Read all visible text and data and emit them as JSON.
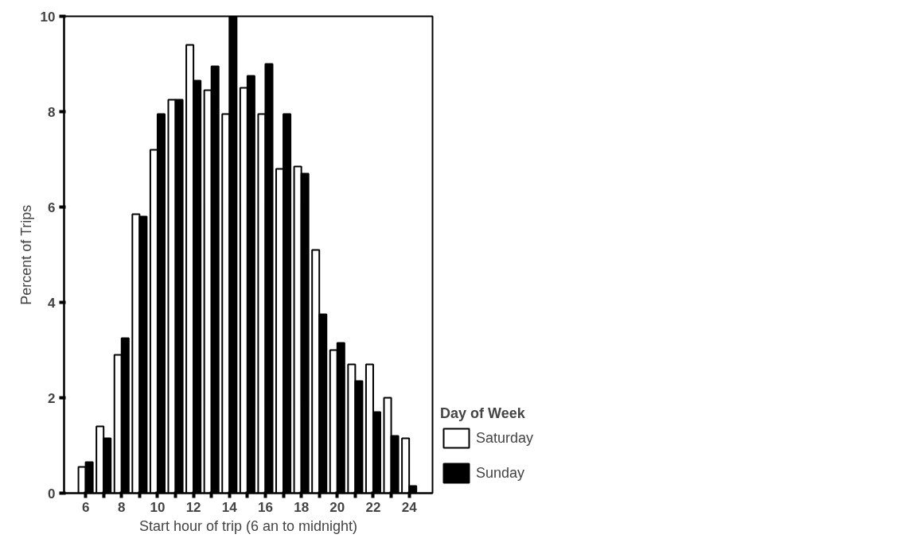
{
  "chart_data": {
    "type": "bar",
    "xlabel": "Start hour of trip (6 an to midnight)",
    "ylabel": "Percent of Trips",
    "legend_title": "Day of Week",
    "legend": "right",
    "grid": false,
    "x": [
      6,
      7,
      8,
      9,
      10,
      11,
      12,
      13,
      14,
      15,
      16,
      17,
      18,
      19,
      20,
      21,
      22,
      23,
      24
    ],
    "series": [
      {
        "name": "Saturday",
        "color": "#ffffff",
        "values": [
          0.55,
          1.4,
          2.9,
          5.85,
          7.2,
          8.25,
          9.4,
          8.45,
          7.95,
          8.5,
          7.95,
          6.8,
          6.85,
          5.1,
          3.0,
          2.7,
          2.7,
          2.0,
          1.15
        ]
      },
      {
        "name": "Sunday",
        "color": "#000000",
        "values": [
          0.65,
          1.15,
          3.25,
          5.8,
          7.95,
          8.25,
          8.65,
          8.95,
          10,
          8.75,
          9.0,
          7.95,
          6.7,
          3.75,
          3.15,
          2.35,
          1.7,
          1.2,
          0.15
        ]
      }
    ],
    "xlim": [
      4.8,
      25.3
    ],
    "xticks": [
      6,
      {
        "value": 7,
        "label": null
      },
      8,
      {
        "value": 9,
        "label": null
      },
      10,
      {
        "value": 11,
        "label": null
      },
      12,
      {
        "value": 13,
        "label": null
      },
      14,
      {
        "value": 15,
        "label": null
      },
      16,
      {
        "value": 17,
        "label": null
      },
      18,
      {
        "value": 19,
        "label": null
      },
      20,
      {
        "value": 21,
        "label": null
      },
      22,
      {
        "value": 23,
        "label": null
      },
      24
    ],
    "ylim": [
      0,
      10
    ],
    "yticks": [
      0,
      2,
      4,
      6,
      8,
      10
    ]
  }
}
